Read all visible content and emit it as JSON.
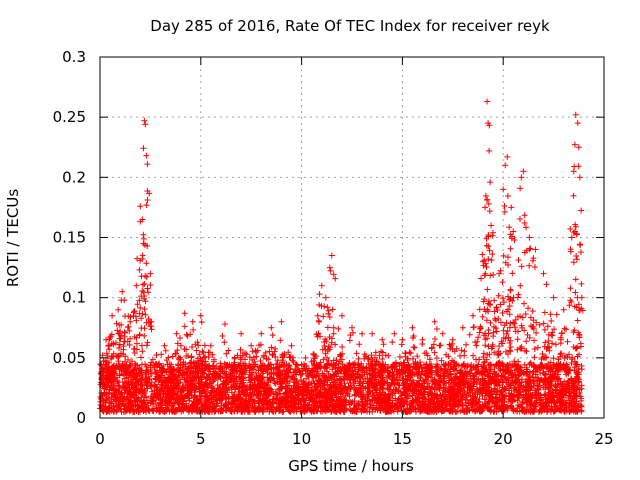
{
  "chart_data": {
    "type": "scatter",
    "title": "Day 285 of 2016, Rate Of TEC Index for receiver reyk",
    "xlabel": "GPS time / hours",
    "ylabel": "ROTI / TECUs",
    "xlim": [
      0,
      25
    ],
    "ylim": [
      0,
      0.3
    ],
    "xticks": [
      0,
      5,
      10,
      15,
      20,
      25
    ],
    "xtick_labels": [
      "0",
      "5",
      "10",
      "15",
      "20",
      "25"
    ],
    "yticks": [
      0,
      0.05,
      0.1,
      0.15,
      0.2,
      0.25,
      0.3
    ],
    "ytick_labels": [
      "0",
      "0.05",
      "0.1",
      "0.15",
      "0.2",
      "0.25",
      "0.3"
    ],
    "grid": true,
    "marker": "plus",
    "color": "#ff0000",
    "baseline_range": [
      0.005,
      0.045
    ],
    "peaks": [
      {
        "x": 0.3,
        "y": 0.065
      },
      {
        "x": 0.6,
        "y": 0.085
      },
      {
        "x": 0.9,
        "y": 0.09
      },
      {
        "x": 1.1,
        "y": 0.105
      },
      {
        "x": 1.5,
        "y": 0.08
      },
      {
        "x": 1.8,
        "y": 0.11
      },
      {
        "x": 2.0,
        "y": 0.176
      },
      {
        "x": 2.1,
        "y": 0.165
      },
      {
        "x": 2.2,
        "y": 0.247
      },
      {
        "x": 2.25,
        "y": 0.244
      },
      {
        "x": 2.3,
        "y": 0.218
      },
      {
        "x": 2.35,
        "y": 0.211
      },
      {
        "x": 2.5,
        "y": 0.12
      },
      {
        "x": 3.2,
        "y": 0.06
      },
      {
        "x": 3.8,
        "y": 0.07
      },
      {
        "x": 4.2,
        "y": 0.087
      },
      {
        "x": 4.6,
        "y": 0.08
      },
      {
        "x": 5.0,
        "y": 0.085
      },
      {
        "x": 5.5,
        "y": 0.06
      },
      {
        "x": 6.2,
        "y": 0.078
      },
      {
        "x": 7.0,
        "y": 0.07
      },
      {
        "x": 7.5,
        "y": 0.06
      },
      {
        "x": 8.0,
        "y": 0.07
      },
      {
        "x": 8.5,
        "y": 0.075
      },
      {
        "x": 9.0,
        "y": 0.08
      },
      {
        "x": 9.5,
        "y": 0.06
      },
      {
        "x": 10.2,
        "y": 0.05
      },
      {
        "x": 10.8,
        "y": 0.085
      },
      {
        "x": 11.0,
        "y": 0.11
      },
      {
        "x": 11.2,
        "y": 0.1
      },
      {
        "x": 11.5,
        "y": 0.135
      },
      {
        "x": 11.4,
        "y": 0.125
      },
      {
        "x": 12.0,
        "y": 0.085
      },
      {
        "x": 12.5,
        "y": 0.075
      },
      {
        "x": 13.0,
        "y": 0.07
      },
      {
        "x": 13.5,
        "y": 0.07
      },
      {
        "x": 14.0,
        "y": 0.065
      },
      {
        "x": 14.6,
        "y": 0.07
      },
      {
        "x": 15.0,
        "y": 0.065
      },
      {
        "x": 15.5,
        "y": 0.075
      },
      {
        "x": 16.0,
        "y": 0.065
      },
      {
        "x": 16.6,
        "y": 0.08
      },
      {
        "x": 17.0,
        "y": 0.07
      },
      {
        "x": 17.5,
        "y": 0.065
      },
      {
        "x": 18.0,
        "y": 0.075
      },
      {
        "x": 18.5,
        "y": 0.085
      },
      {
        "x": 19.0,
        "y": 0.13
      },
      {
        "x": 19.1,
        "y": 0.175
      },
      {
        "x": 19.2,
        "y": 0.263
      },
      {
        "x": 19.25,
        "y": 0.245
      },
      {
        "x": 19.3,
        "y": 0.222
      },
      {
        "x": 19.35,
        "y": 0.196
      },
      {
        "x": 19.4,
        "y": 0.16
      },
      {
        "x": 19.8,
        "y": 0.12
      },
      {
        "x": 20.0,
        "y": 0.19
      },
      {
        "x": 20.1,
        "y": 0.21
      },
      {
        "x": 20.2,
        "y": 0.217
      },
      {
        "x": 20.4,
        "y": 0.175
      },
      {
        "x": 20.5,
        "y": 0.155
      },
      {
        "x": 20.9,
        "y": 0.2
      },
      {
        "x": 21.0,
        "y": 0.205
      },
      {
        "x": 21.3,
        "y": 0.15
      },
      {
        "x": 21.6,
        "y": 0.14
      },
      {
        "x": 22.0,
        "y": 0.12
      },
      {
        "x": 22.5,
        "y": 0.1
      },
      {
        "x": 23.0,
        "y": 0.09
      },
      {
        "x": 23.4,
        "y": 0.15
      },
      {
        "x": 23.5,
        "y": 0.205
      },
      {
        "x": 23.6,
        "y": 0.252
      },
      {
        "x": 23.7,
        "y": 0.245
      },
      {
        "x": 23.75,
        "y": 0.225
      },
      {
        "x": 23.8,
        "y": 0.2
      },
      {
        "x": 23.9,
        "y": 0.1
      }
    ],
    "envelope": [
      {
        "x": 0,
        "y": 0.055
      },
      {
        "x": 1,
        "y": 0.08
      },
      {
        "x": 2,
        "y": 0.1
      },
      {
        "x": 2.5,
        "y": 0.085
      },
      {
        "x": 3,
        "y": 0.045
      },
      {
        "x": 4,
        "y": 0.06
      },
      {
        "x": 5,
        "y": 0.065
      },
      {
        "x": 6,
        "y": 0.045
      },
      {
        "x": 7,
        "y": 0.055
      },
      {
        "x": 8,
        "y": 0.06
      },
      {
        "x": 9,
        "y": 0.06
      },
      {
        "x": 10,
        "y": 0.04
      },
      {
        "x": 11,
        "y": 0.065
      },
      {
        "x": 12,
        "y": 0.06
      },
      {
        "x": 13,
        "y": 0.055
      },
      {
        "x": 14,
        "y": 0.055
      },
      {
        "x": 15,
        "y": 0.055
      },
      {
        "x": 16,
        "y": 0.055
      },
      {
        "x": 17,
        "y": 0.055
      },
      {
        "x": 18,
        "y": 0.06
      },
      {
        "x": 19,
        "y": 0.09
      },
      {
        "x": 20,
        "y": 0.11
      },
      {
        "x": 21,
        "y": 0.1
      },
      {
        "x": 22,
        "y": 0.085
      },
      {
        "x": 23,
        "y": 0.07
      },
      {
        "x": 23.9,
        "y": 0.08
      }
    ]
  }
}
